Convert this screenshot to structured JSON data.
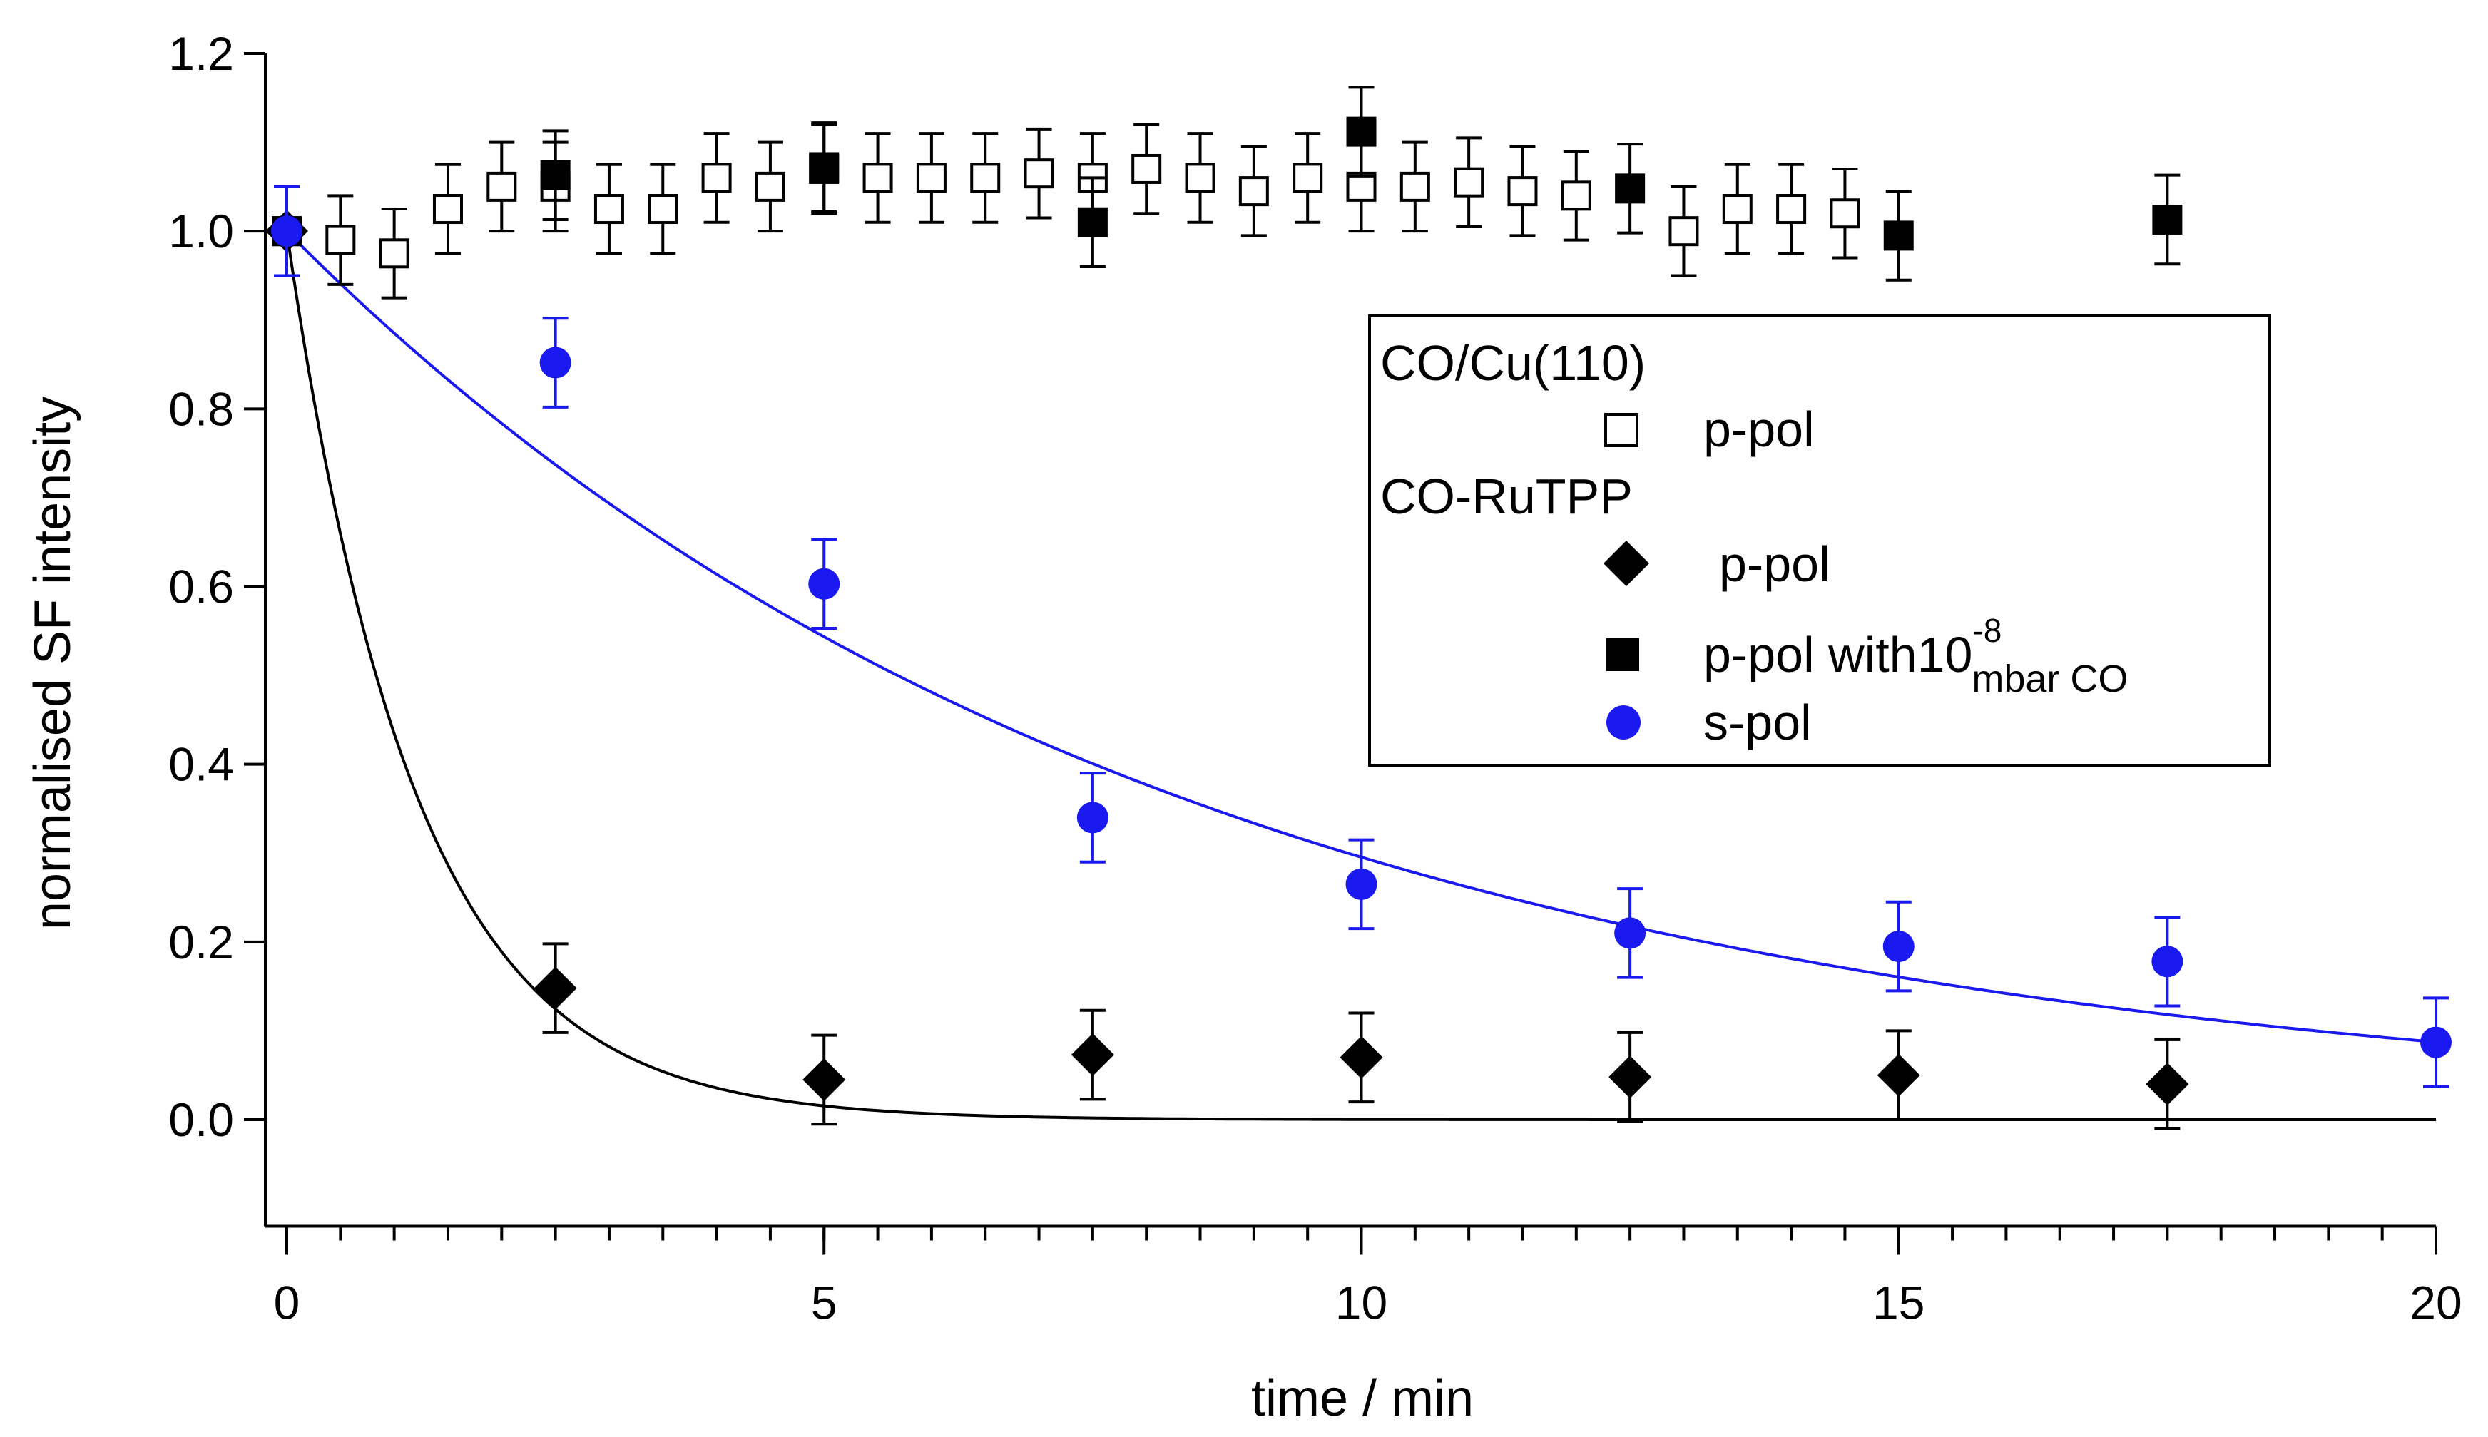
{
  "chart_data": {
    "type": "scatter",
    "title": "",
    "xlabel": "time / min",
    "ylabel": "normalised SF intensity",
    "xlim": [
      -0.2,
      20
    ],
    "ylim": [
      -0.12,
      1.2
    ],
    "x_major_ticks": [
      0,
      5,
      10,
      15,
      20
    ],
    "x_minor_step": 0.5,
    "x_tick_labels": [
      "0",
      "5",
      "10",
      "15",
      "20"
    ],
    "y_ticks": [
      0.0,
      0.2,
      0.4,
      0.6,
      0.8,
      1.0,
      1.2
    ],
    "y_tick_labels": [
      "0.0",
      "0.2",
      "0.4",
      "0.6",
      "0.8",
      "1.0",
      "1.2"
    ],
    "legend": {
      "group1_title": "CO/Cu(110)",
      "group2_title": "CO-RuTPP",
      "entries": [
        {
          "label": "p-pol",
          "marker": "open-square"
        },
        {
          "label": "p-pol",
          "marker": "diamond"
        },
        {
          "label": "p-pol with10",
          "superscript": "-8",
          "subscript": "mbar CO",
          "marker": "filled-square"
        },
        {
          "label": "s-pol",
          "marker": "circle"
        }
      ]
    },
    "series": [
      {
        "name": "CO/Cu(110) p-pol",
        "marker": "open-square",
        "color": "#000000",
        "error": 0.05,
        "x": [
          0,
          0.5,
          1,
          1.5,
          2,
          2.5,
          3,
          3.5,
          4,
          4.5,
          5,
          5.5,
          6,
          6.5,
          7,
          7.5,
          8,
          8.5,
          9,
          9.5,
          10,
          10.5,
          11,
          11.5,
          12,
          13,
          13.5,
          14,
          14.5
        ],
        "y": [
          1.0,
          0.99,
          0.975,
          1.025,
          1.05,
          1.05,
          1.025,
          1.025,
          1.06,
          1.05,
          1.07,
          1.06,
          1.06,
          1.06,
          1.065,
          1.06,
          1.07,
          1.06,
          1.045,
          1.06,
          1.05,
          1.05,
          1.055,
          1.045,
          1.04,
          1.0,
          1.025,
          1.025,
          1.02
        ]
      },
      {
        "name": "CO-RuTPP p-pol",
        "marker": "diamond",
        "color": "#000000",
        "error": 0.05,
        "x": [
          0,
          2.5,
          5,
          7.5,
          10,
          12.5,
          15,
          17.5
        ],
        "y": [
          1.0,
          0.148,
          0.045,
          0.073,
          0.07,
          0.048,
          0.05,
          0.04
        ]
      },
      {
        "name": "CO-RuTPP p-pol with 1e-8 mbar CO",
        "marker": "filled-square",
        "color": "#000000",
        "error": 0.05,
        "x": [
          0,
          2.5,
          5,
          7.5,
          10,
          12.5,
          15,
          17.5
        ],
        "y": [
          1.0,
          1.063,
          1.072,
          1.01,
          1.112,
          1.048,
          0.995,
          1.013
        ]
      },
      {
        "name": "CO-RuTPP s-pol",
        "marker": "circle",
        "color": "#1a1af0",
        "error": 0.05,
        "x": [
          0,
          2.5,
          5,
          7.5,
          10,
          12.5,
          15,
          17.5,
          20
        ],
        "y": [
          1.0,
          0.852,
          0.603,
          0.34,
          0.265,
          0.21,
          0.195,
          0.178,
          0.087
        ]
      }
    ],
    "fits": [
      {
        "name": "p-pol fit",
        "color": "#000000",
        "amplitude": 1.0,
        "tau_min": 1.2,
        "x_range": [
          0,
          20
        ]
      },
      {
        "name": "s-pol fit",
        "color": "#1a1af0",
        "amplitude": 1.0,
        "tau_min": 8.2,
        "x_range": [
          0,
          20
        ]
      }
    ]
  }
}
